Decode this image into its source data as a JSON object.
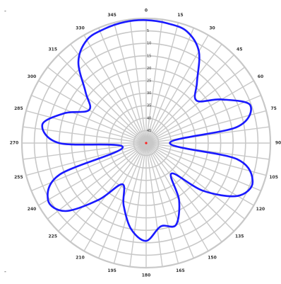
{
  "chart_data": {
    "type": "line",
    "subtype": "polar",
    "title": "",
    "angle_labels": [
      "0",
      "15",
      "30",
      "45",
      "60",
      "75",
      "90",
      "105",
      "120",
      "135",
      "150",
      "165",
      "180",
      "195",
      "210",
      "225",
      "240",
      "255",
      "270",
      "285",
      "300",
      "315",
      "330",
      "345"
    ],
    "angle_range_deg": [
      0,
      360
    ],
    "radial_labels": [
      "5",
      "10",
      "15",
      "20",
      "25",
      "30",
      "35",
      "40",
      "45"
    ],
    "radial_range": [
      0,
      45
    ],
    "grid": true,
    "legend": "none",
    "series": [
      {
        "theta_deg": [
          0,
          10,
          20,
          30,
          40,
          50,
          60,
          70,
          80,
          90,
          100,
          110,
          120,
          130,
          140,
          150,
          160,
          170,
          180,
          190,
          200,
          210,
          220,
          230,
          240,
          250,
          260,
          270,
          280,
          290,
          300,
          310,
          320,
          330,
          340,
          350
        ],
        "r": [
          46.5,
          46,
          45,
          40,
          30,
          25,
          33,
          42,
          35,
          9,
          35,
          43,
          40,
          28,
          15,
          25,
          33,
          32,
          37,
          33,
          25,
          18,
          28,
          40,
          43,
          35,
          9,
          33,
          40,
          33,
          25,
          30,
          40,
          45,
          46,
          46.5
        ]
      }
    ],
    "colors": {
      "series": "#1a1aff",
      "grid": "#c8c8c8",
      "center": "#ff2020",
      "label": "#333333"
    }
  },
  "corner_marks": {
    "top": "-",
    "bottom": "-"
  }
}
